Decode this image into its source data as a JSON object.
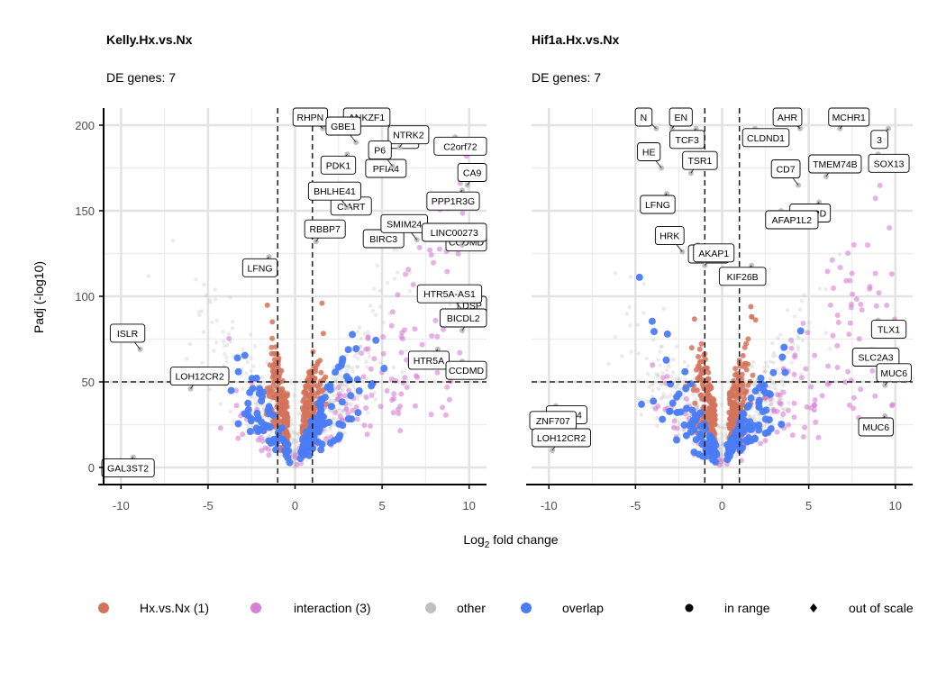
{
  "x_axis_title_parts": {
    "base": "Log",
    "sub": "2",
    "rest": " fold change"
  },
  "y_axis_title": "Padj (-log10)",
  "legend": {
    "color_items": [
      {
        "label": "Hx.vs.Nx (1)",
        "color": "#d4735a"
      },
      {
        "label": "interaction (3)",
        "color": "#d67fd4"
      },
      {
        "label": "other",
        "color": "#c0c0c0"
      },
      {
        "label": "overlap",
        "color": "#4a7cf5"
      }
    ],
    "shape_items": [
      {
        "label": "in range",
        "shape": "circle"
      },
      {
        "label": "out of scale",
        "shape": "diamond"
      }
    ]
  },
  "chart_data": [
    {
      "type": "scatter",
      "title": "Kelly.Hx.vs.Nx",
      "subtitle": "DE genes: 7",
      "xlabel": "Log2 fold change",
      "ylabel": "Padj (-log10)",
      "xlim": [
        -11,
        11
      ],
      "ylim": [
        -10,
        210
      ],
      "x_ticks": [
        -10,
        -5,
        0,
        5,
        10
      ],
      "y_ticks": [
        0,
        50,
        100,
        150,
        200
      ],
      "thresholds": {
        "x": [
          -1,
          1
        ],
        "y": 50
      },
      "grid": true,
      "labeled_genes": [
        {
          "gene": "RHPN",
          "x": 1.6,
          "y": 198
        },
        {
          "gene": "ANKZF1",
          "x": 3.6,
          "y": 199
        },
        {
          "gene": "TR1",
          "x": 6.8,
          "y": 198
        },
        {
          "gene": "C2orf72",
          "x": 9.2,
          "y": 193
        },
        {
          "gene": "GBE1",
          "x": 3.5,
          "y": 190
        },
        {
          "gene": "NTRK2",
          "x": 6.0,
          "y": 187
        },
        {
          "gene": "PDK1",
          "x": 3.0,
          "y": 183
        },
        {
          "gene": "PFIA4",
          "x": 4.6,
          "y": 180
        },
        {
          "gene": "P6",
          "x": 5.6,
          "y": 176
        },
        {
          "gene": "CA9",
          "x": 9.9,
          "y": 165
        },
        {
          "gene": "PPP1R3G",
          "x": 9.6,
          "y": 162
        },
        {
          "gene": "CIART",
          "x": 2.6,
          "y": 158
        },
        {
          "gene": "BHLHE41",
          "x": 3.0,
          "y": 152
        },
        {
          "gene": "RBBP7",
          "x": 1.2,
          "y": 132
        },
        {
          "gene": "BIRC3",
          "x": 5.6,
          "y": 140
        },
        {
          "gene": "CCDMD",
          "x": 9.6,
          "y": 137
        },
        {
          "gene": "SMIM24",
          "x": 7.0,
          "y": 133
        },
        {
          "gene": "LINC00273",
          "x": 9.6,
          "y": 130
        },
        {
          "gene": "LFNG",
          "x": -1.5,
          "y": 123
        },
        {
          "gene": "DSP",
          "x": 9.6,
          "y": 100
        },
        {
          "gene": "HTR5A-AS1",
          "x": 9.6,
          "y": 92
        },
        {
          "gene": "BICDL2",
          "x": 9.6,
          "y": 80
        },
        {
          "gene": "HTR5A",
          "x": 8.2,
          "y": 69
        },
        {
          "gene": "CCDMD",
          "x": 9.6,
          "y": 62
        },
        {
          "gene": "ISLR",
          "x": -8.9,
          "y": 69
        },
        {
          "gene": "LOH12CR2",
          "x": -6.0,
          "y": 46
        },
        {
          "gene": "GAL3ST2",
          "x": -9.3,
          "y": 6
        }
      ]
    },
    {
      "type": "scatter",
      "title": "Hif1a.Hx.vs.Nx",
      "subtitle": "DE genes: 7",
      "xlabel": "Log2 fold change",
      "ylabel": "Padj (-log10)",
      "xlim": [
        -11,
        11
      ],
      "ylim": [
        -10,
        210
      ],
      "x_ticks": [
        -10,
        -5,
        0,
        5,
        10
      ],
      "y_ticks": [
        0,
        50,
        100,
        150,
        200
      ],
      "thresholds": {
        "x": [
          -1,
          1
        ],
        "y": 50
      },
      "grid": true,
      "labeled_genes": [
        {
          "gene": "N",
          "x": -3.8,
          "y": 198
        },
        {
          "gene": "EN",
          "x": -2.9,
          "y": 198
        },
        {
          "gene": "TCF3",
          "x": -1.5,
          "y": 198
        },
        {
          "gene": "CLDND1",
          "x": 1.9,
          "y": 198
        },
        {
          "gene": "AHR",
          "x": 4.5,
          "y": 198
        },
        {
          "gene": "MCHR1",
          "x": 6.8,
          "y": 198
        },
        {
          "gene": "3",
          "x": 9.6,
          "y": 198
        },
        {
          "gene": "SOX13",
          "x": 9.0,
          "y": 183
        },
        {
          "gene": "CD7",
          "x": 4.4,
          "y": 165
        },
        {
          "gene": "TMEM74B",
          "x": 6.0,
          "y": 170
        },
        {
          "gene": "CEBPD",
          "x": 5.6,
          "y": 155
        },
        {
          "gene": "AFAP1L2",
          "x": 3.4,
          "y": 150
        },
        {
          "gene": "HE",
          "x": -3.5,
          "y": 175
        },
        {
          "gene": "TSR1",
          "x": -1.8,
          "y": 172
        },
        {
          "gene": "LFNG",
          "x": -3.2,
          "y": 160
        },
        {
          "gene": "NARS2",
          "x": -1.4,
          "y": 130
        },
        {
          "gene": "HRK",
          "x": -2.3,
          "y": 126
        },
        {
          "gene": "AKAP1",
          "x": -1.0,
          "y": 118
        },
        {
          "gene": "KIF26B",
          "x": 1.7,
          "y": 118
        },
        {
          "gene": "TLX1",
          "x": 9.0,
          "y": 86
        },
        {
          "gene": "SLC2A3",
          "x": 9.6,
          "y": 55
        },
        {
          "gene": "MUC6",
          "x": 9.4,
          "y": 48
        },
        {
          "gene": "MUC6",
          "x": 9.4,
          "y": 30
        },
        {
          "gene": "CBLN4",
          "x": -9.6,
          "y": 36
        },
        {
          "gene": "ZNF707",
          "x": -9.8,
          "y": 18
        },
        {
          "gene": "LOH12CR2",
          "x": -9.8,
          "y": 10
        }
      ]
    }
  ]
}
